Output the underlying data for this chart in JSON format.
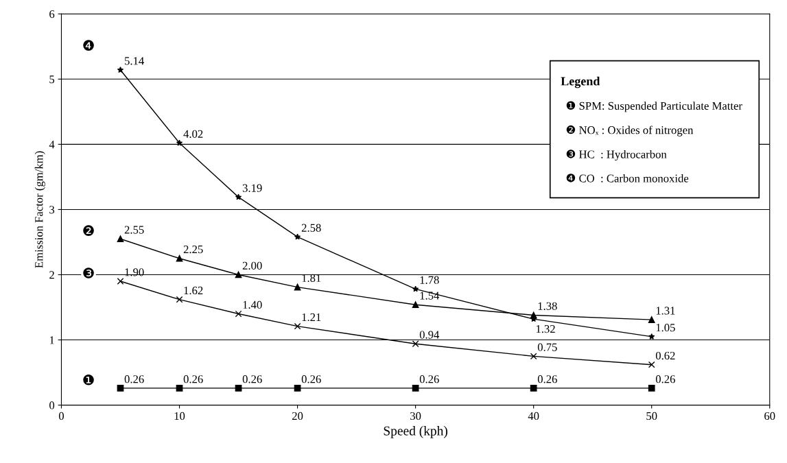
{
  "chart_data": {
    "type": "line",
    "xlabel": "Speed (kph)",
    "ylabel": "Emission Factor (gm/km)",
    "x": [
      5,
      10,
      15,
      20,
      30,
      40,
      50
    ],
    "xlim": [
      0,
      60
    ],
    "xticks": [
      0,
      10,
      20,
      30,
      40,
      50,
      60
    ],
    "ylim": [
      0,
      6
    ],
    "yticks": [
      0,
      1,
      2,
      3,
      4,
      5,
      6
    ],
    "grid": "y",
    "legend": "left",
    "line_style": "solid",
    "series": [
      {
        "name": "❶",
        "color": "#000000",
        "marker": "square",
        "values": [
          0.26,
          0.26,
          0.26,
          0.26,
          0.26,
          0.26,
          0.26
        ],
        "value_labels": [
          "0.26",
          "0.26",
          "0.26",
          "0.26",
          "0.26",
          "0.26",
          "0.26"
        ]
      },
      {
        "name": "❷",
        "color": "#000000",
        "marker": "triangle",
        "values": [
          2.55,
          2.25,
          2.0,
          1.81,
          1.54,
          1.38,
          1.31
        ],
        "value_labels": [
          "2.55",
          "2.25",
          "2.00",
          "1.81",
          "1.54",
          "1.38",
          "1.31"
        ]
      },
      {
        "name": "❸",
        "color": "#000000",
        "marker": "cross",
        "values": [
          1.9,
          1.62,
          1.4,
          1.21,
          0.94,
          0.75,
          0.62
        ],
        "value_labels": [
          "1.90",
          "1.62",
          "1.40",
          "1.21",
          "0.94",
          "0.75",
          "0.62"
        ]
      },
      {
        "name": "❹",
        "color": "#000000",
        "marker": "star",
        "values": [
          5.14,
          4.02,
          3.19,
          2.58,
          1.78,
          1.32,
          1.05
        ],
        "value_labels": [
          "5.14",
          "4.02",
          "3.19",
          "2.58",
          "1.78",
          "1.32",
          "1.05"
        ]
      }
    ],
    "annotations": [
      "Legend",
      "❶ SPM: Suspended Particulate Matter",
      "❷ NOₓ : Oxides of nitrogen",
      "❸ HC  : Hydrocarbon",
      "❹ CO  : Carbon monoxide"
    ]
  }
}
